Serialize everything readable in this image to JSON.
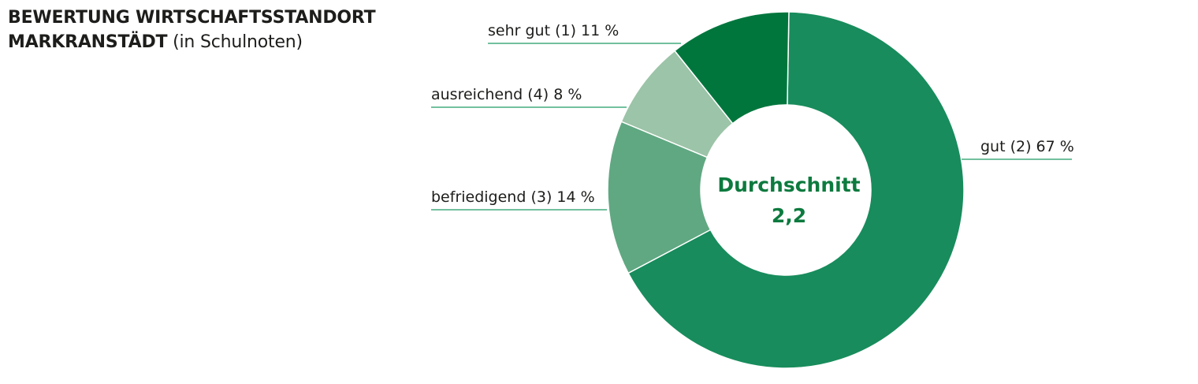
{
  "header": {
    "title_line1": "BEWERTUNG WIRTSCHAFTSSTANDORT",
    "title_line2": "MARKRANSTÄDT",
    "subtitle": "(in Schulnoten)"
  },
  "chart_data": {
    "type": "pie",
    "variant": "donut",
    "title": "BEWERTUNG WIRTSCHAFTSSTANDORT MARKRANSTÄDT",
    "subtitle": "(in Schulnoten)",
    "slices": [
      {
        "label": "gut (2) 67 %",
        "value": 67,
        "color": "#188c5c"
      },
      {
        "label": "befriedigend (3) 14 %",
        "value": 14,
        "color": "#60a882"
      },
      {
        "label": "ausreichend (4) 8 %",
        "value": 8,
        "color": "#9cc4a8"
      },
      {
        "label": "sehr gut (1) 11 %",
        "value": 11,
        "color": "#00763d"
      }
    ],
    "center": {
      "label": "Durchschnitt",
      "value": "2,2"
    },
    "leader_color": "#1f9a63",
    "label_color": "#1d1d1b",
    "center_text_color": "#0c7a3e"
  }
}
